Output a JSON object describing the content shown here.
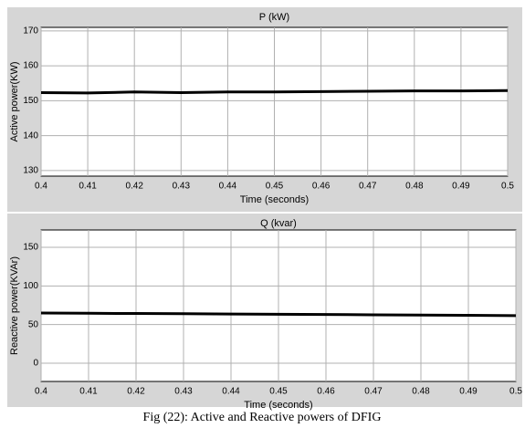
{
  "chart_data": [
    {
      "type": "line",
      "title": "P (kW)",
      "xlabel": "Time (seconds)",
      "ylabel": "Active power(KW)",
      "x": [
        0.4,
        0.41,
        0.42,
        0.43,
        0.44,
        0.45,
        0.46,
        0.47,
        0.48,
        0.49,
        0.5
      ],
      "series": [
        {
          "name": "P",
          "color": "#000000",
          "values": [
            152.3,
            152.2,
            152.5,
            152.3,
            152.5,
            152.5,
            152.6,
            152.7,
            152.8,
            152.8,
            152.9
          ]
        }
      ],
      "xlim": [
        0.4,
        0.5
      ],
      "xticks": [
        0.4,
        0.41,
        0.42,
        0.43,
        0.44,
        0.45,
        0.46,
        0.47,
        0.48,
        0.49,
        0.5
      ],
      "ylim": [
        128.4,
        171
      ],
      "yticks": [
        130,
        140,
        150,
        160,
        170
      ],
      "grid": true
    },
    {
      "type": "line",
      "title": "Q (kvar)",
      "xlabel": "Time (seconds)",
      "ylabel": "Reactive power(KVAr)",
      "x": [
        0.4,
        0.41,
        0.42,
        0.43,
        0.44,
        0.45,
        0.46,
        0.47,
        0.48,
        0.49,
        0.5
      ],
      "series": [
        {
          "name": "Q",
          "color": "#000000",
          "values": [
            65,
            64.6,
            64.3,
            64,
            63.6,
            63.3,
            63,
            62.6,
            62.3,
            62,
            61.5
          ]
        }
      ],
      "xlim": [
        0.4,
        0.5
      ],
      "xticks": [
        0.4,
        0.41,
        0.42,
        0.43,
        0.44,
        0.45,
        0.46,
        0.47,
        0.48,
        0.49,
        0.5
      ],
      "ylim": [
        -23.7,
        172.5
      ],
      "yticks": [
        0,
        50,
        100,
        150
      ],
      "grid": true
    }
  ],
  "caption": "Fig (22): Active and Reactive powers of DFIG"
}
